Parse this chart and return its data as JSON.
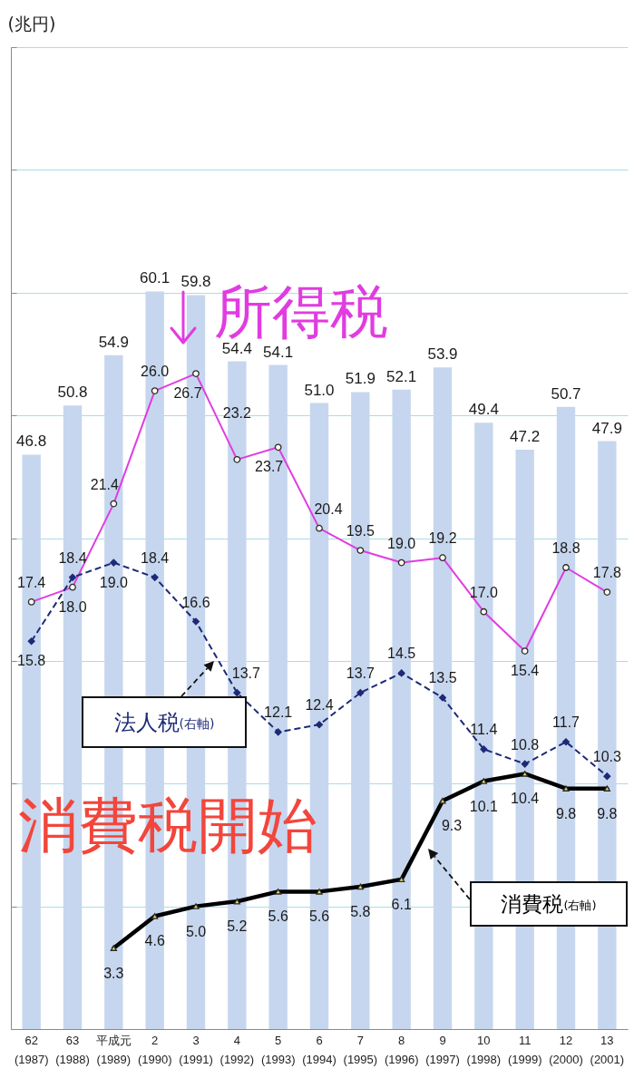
{
  "chart_data": {
    "type": "bar",
    "ylabel": "(兆円)",
    "categories": [
      "62 (1987)",
      "63 (1988)",
      "平成元 (1989)",
      "2 (1990)",
      "3 (1991)",
      "4 (1992)",
      "5 (1993)",
      "6 (1994)",
      "7 (1995)",
      "8 (1996)",
      "9 (1997)",
      "10 (1998)",
      "11 (1999)",
      "12 (2000)",
      "13 (2001)"
    ],
    "series": [
      {
        "color": "#c6d6ee",
        "values": [
          46.8,
          50.8,
          54.9,
          60.1,
          59.8,
          54.4,
          54.1,
          51.0,
          51.9,
          52.1,
          53.9,
          49.4,
          47.2,
          50.7,
          47.9
        ],
        "value_labels": [
          "46.8",
          "50.8",
          "54.9",
          "60.1",
          "59.8",
          "54.4",
          "54.1",
          "51.0",
          "51.9",
          "52.1",
          "53.9",
          "49.4",
          "47.2",
          "50.7",
          "47.9"
        ]
      },
      {
        "type": "line",
        "name": "所得税",
        "axis": "y2",
        "color": "#e03ce0",
        "marker": "circle",
        "line_style": "solid",
        "values": [
          17.4,
          18.0,
          21.4,
          26.0,
          26.7,
          23.2,
          23.7,
          20.4,
          19.5,
          19.0,
          19.2,
          17.0,
          15.4,
          18.8,
          17.8
        ],
        "value_labels": [
          "17.4",
          "18.0",
          "21.4",
          "26.0",
          "26.7",
          "23.2",
          "23.7",
          "20.4",
          "19.5",
          "19.0",
          "19.2",
          "17.0",
          "15.4",
          "18.8",
          "17.8"
        ]
      },
      {
        "type": "line",
        "name": "法人税(右軸)",
        "axis": "y2",
        "color": "#1c2a78",
        "marker": "diamond",
        "line_style": "dashed",
        "values": [
          15.8,
          18.4,
          19.0,
          18.4,
          16.6,
          13.7,
          12.1,
          12.4,
          13.7,
          14.5,
          13.5,
          11.4,
          10.8,
          11.7,
          10.3
        ],
        "value_labels": [
          "15.8",
          "18.4",
          "19.0",
          "18.4",
          "16.6",
          "13.7",
          "12.1",
          "12.4",
          "13.7",
          "14.5",
          "13.5",
          "11.4",
          "10.8",
          "11.7",
          "10.3"
        ]
      },
      {
        "type": "line",
        "name": "消費税(右軸)",
        "axis": "y2",
        "color": "#000000",
        "marker": "triangle",
        "line_style": "solid",
        "values": [
          null,
          null,
          3.3,
          4.6,
          5.0,
          5.2,
          5.6,
          5.6,
          5.8,
          6.1,
          9.3,
          10.1,
          10.4,
          9.8,
          9.8
        ],
        "value_labels": [
          null,
          null,
          "3.3",
          "4.6",
          "5.0",
          "5.2",
          "5.6",
          "5.6",
          "5.8",
          "6.1",
          "9.3",
          "10.1",
          "10.4",
          "9.8",
          "9.8"
        ]
      }
    ],
    "ylim": [
      0,
      80
    ],
    "yticks": [
      {
        "value": 0,
        "label": null
      },
      {
        "value": 10,
        "label": null
      },
      {
        "value": 20,
        "label": null
      },
      {
        "value": 30,
        "label": null
      },
      {
        "value": 40,
        "label": null
      },
      {
        "value": 50,
        "label": null
      },
      {
        "value": 60,
        "label": null
      },
      {
        "value": 70,
        "label": null
      },
      {
        "value": 80,
        "label": null
      }
    ],
    "y2lim": [
      0,
      40
    ],
    "grid": "y",
    "tick_labels": "x",
    "annotations": [
      "消費税開始"
    ]
  }
}
